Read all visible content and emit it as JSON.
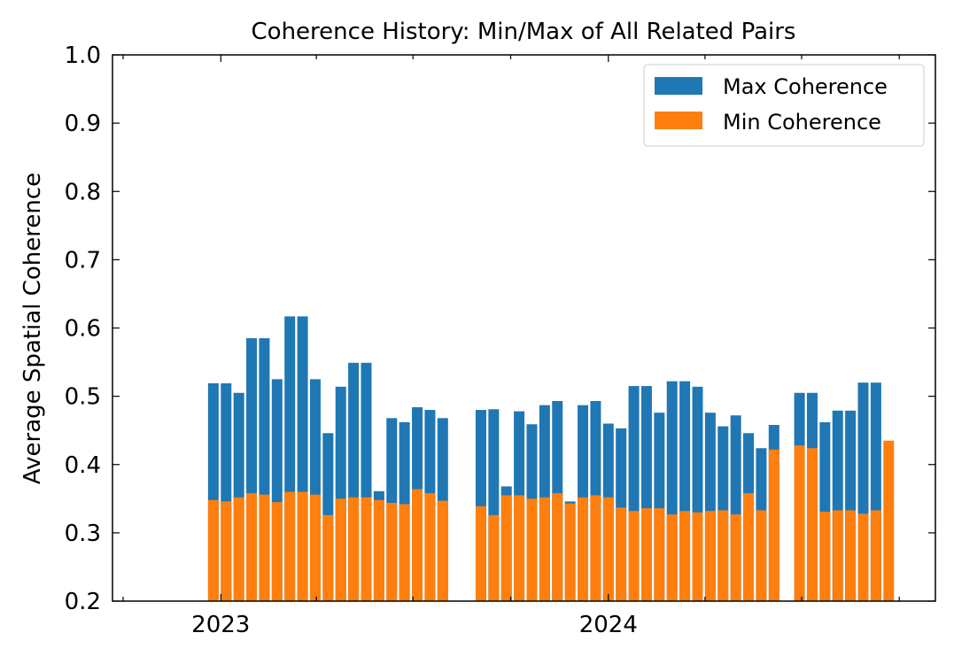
{
  "chart_data": {
    "type": "bar",
    "title": "Coherence History: Min/Max of All Related Pairs",
    "ylabel": "Average Spatial Coherence",
    "xlabel": "",
    "ylim": [
      0.2,
      1.0
    ],
    "yticks": [
      "0.2",
      "0.3",
      "0.4",
      "0.5",
      "0.6",
      "0.7",
      "0.8",
      "0.9",
      "1.0"
    ],
    "xlim": [
      "2022-09-21",
      "2024-11-04"
    ],
    "xticks": [
      {
        "label": "2023",
        "date": "2023-01-01"
      },
      {
        "label": "2024",
        "date": "2024-01-01"
      }
    ],
    "grid": false,
    "legend_position": "top-right",
    "dates": [
      "2022-12-25",
      "2023-01-06",
      "2023-01-18",
      "2023-01-30",
      "2023-02-11",
      "2023-02-23",
      "2023-03-07",
      "2023-03-19",
      "2023-03-31",
      "2023-04-12",
      "2023-04-24",
      "2023-05-06",
      "2023-05-18",
      "2023-05-30",
      "2023-06-11",
      "2023-06-23",
      "2023-07-05",
      "2023-07-17",
      "2023-07-29",
      "2023-08-10",
      "2023-09-03",
      "2023-09-15",
      "2023-09-27",
      "2023-10-09",
      "2023-10-21",
      "2023-11-02",
      "2023-11-14",
      "2023-11-26",
      "2023-12-08",
      "2023-12-20",
      "2024-01-01",
      "2024-01-13",
      "2024-01-25",
      "2024-02-06",
      "2024-02-18",
      "2024-03-01",
      "2024-03-13",
      "2024-03-25",
      "2024-04-06",
      "2024-04-18",
      "2024-04-30",
      "2024-05-12",
      "2024-05-24",
      "2024-06-05",
      "2024-06-29",
      "2024-07-11",
      "2024-07-23",
      "2024-08-04",
      "2024-08-16",
      "2024-08-28",
      "2024-09-09",
      "2024-09-21"
    ],
    "series": [
      {
        "name": "Max Coherence",
        "color": "#1f77b4",
        "values": [
          0.519,
          0.519,
          0.505,
          0.585,
          0.585,
          0.525,
          0.617,
          0.617,
          0.525,
          0.446,
          0.514,
          0.549,
          0.549,
          0.361,
          0.468,
          0.462,
          0.484,
          0.48,
          0.468,
          null,
          0.48,
          0.481,
          0.368,
          0.478,
          0.459,
          0.487,
          0.493,
          0.346,
          0.487,
          0.493,
          0.46,
          0.453,
          0.515,
          0.515,
          0.476,
          0.522,
          0.522,
          0.514,
          0.476,
          0.456,
          0.472,
          0.446,
          0.424,
          0.458,
          0.505,
          0.505,
          0.462,
          0.479,
          0.479,
          0.52,
          0.52,
          null
        ]
      },
      {
        "name": "Min Coherence",
        "color": "#ff7f0e",
        "values": [
          0.348,
          0.346,
          0.352,
          0.358,
          0.356,
          0.345,
          0.36,
          0.36,
          0.356,
          0.326,
          0.35,
          0.352,
          0.352,
          0.348,
          0.344,
          0.342,
          0.364,
          0.358,
          0.347,
          null,
          0.339,
          0.326,
          0.355,
          0.355,
          0.35,
          0.352,
          0.358,
          0.343,
          0.352,
          0.355,
          0.352,
          0.337,
          0.332,
          0.336,
          0.336,
          0.327,
          0.332,
          0.33,
          0.332,
          0.333,
          0.327,
          0.358,
          0.333,
          0.422,
          0.428,
          0.424,
          0.331,
          0.333,
          0.333,
          0.328,
          0.333,
          0.435
        ]
      }
    ]
  }
}
